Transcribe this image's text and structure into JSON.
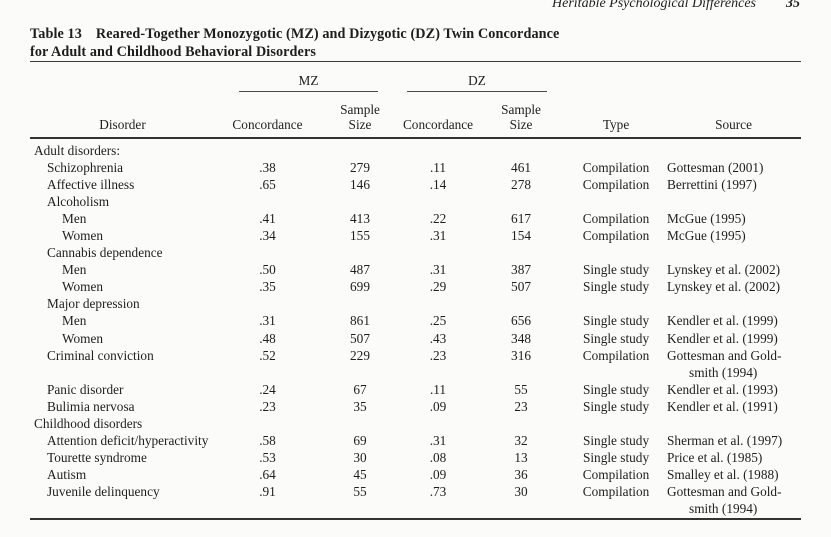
{
  "page": {
    "running_header": "Heritable Psychological Differences",
    "page_number": "35"
  },
  "table": {
    "title": {
      "label": "Table 13",
      "line1": "Reared-Together Monozygotic (MZ) and Dizygotic (DZ) Twin Concordance",
      "line2": "for Adult and Childhood Behavioral Disorders"
    },
    "columns": {
      "disorder": "Disorder",
      "mz_group": "MZ",
      "dz_group": "DZ",
      "concordance": "Concordance",
      "sample_line1": "Sample",
      "sample_line2": "Size",
      "type": "Type",
      "source": "Source"
    },
    "rows": [
      {
        "label": "Adult disorders:",
        "indent": 0
      },
      {
        "label": "Schizophrenia",
        "indent": 1,
        "mz_concordance": ".38",
        "mz_sample": "279",
        "dz_concordance": ".11",
        "dz_sample": "461",
        "type": "Compilation",
        "source": [
          "Gottesman (2001)"
        ]
      },
      {
        "label": "Affective illness",
        "indent": 1,
        "mz_concordance": ".65",
        "mz_sample": "146",
        "dz_concordance": ".14",
        "dz_sample": "278",
        "type": "Compilation",
        "source": [
          "Berrettini (1997)"
        ]
      },
      {
        "label": "Alcoholism",
        "indent": 1
      },
      {
        "label": "Men",
        "indent": 2,
        "mz_concordance": ".41",
        "mz_sample": "413",
        "dz_concordance": ".22",
        "dz_sample": "617",
        "type": "Compilation",
        "source": [
          "McGue (1995)"
        ]
      },
      {
        "label": "Women",
        "indent": 2,
        "mz_concordance": ".34",
        "mz_sample": "155",
        "dz_concordance": ".31",
        "dz_sample": "154",
        "type": "Compilation",
        "source": [
          "McGue (1995)"
        ]
      },
      {
        "label": "Cannabis dependence",
        "indent": 1
      },
      {
        "label": "Men",
        "indent": 2,
        "mz_concordance": ".50",
        "mz_sample": "487",
        "dz_concordance": ".31",
        "dz_sample": "387",
        "type": "Single study",
        "source": [
          "Lynskey et al. (2002)"
        ]
      },
      {
        "label": "Women",
        "indent": 2,
        "mz_concordance": ".35",
        "mz_sample": "699",
        "dz_concordance": ".29",
        "dz_sample": "507",
        "type": "Single study",
        "source": [
          "Lynskey et al. (2002)"
        ]
      },
      {
        "label": "Major depression",
        "indent": 1
      },
      {
        "label": "Men",
        "indent": 2,
        "mz_concordance": ".31",
        "mz_sample": "861",
        "dz_concordance": ".25",
        "dz_sample": "656",
        "type": "Single study",
        "source": [
          "Kendler et al. (1999)"
        ]
      },
      {
        "label": "Women",
        "indent": 2,
        "mz_concordance": ".48",
        "mz_sample": "507",
        "dz_concordance": ".43",
        "dz_sample": "348",
        "type": "Single study",
        "source": [
          "Kendler et al. (1999)"
        ]
      },
      {
        "label": "Criminal conviction",
        "indent": 1,
        "mz_concordance": ".52",
        "mz_sample": "229",
        "dz_concordance": ".23",
        "dz_sample": "316",
        "type": "Compilation",
        "source": [
          "Gottesman and Gold-",
          "smith (1994)"
        ]
      },
      {
        "label": "Panic disorder",
        "indent": 1,
        "mz_concordance": ".24",
        "mz_sample": "67",
        "dz_concordance": ".11",
        "dz_sample": "55",
        "type": "Single study",
        "source": [
          "Kendler et al. (1993)"
        ]
      },
      {
        "label": "Bulimia nervosa",
        "indent": 1,
        "mz_concordance": ".23",
        "mz_sample": "35",
        "dz_concordance": ".09",
        "dz_sample": "23",
        "type": "Single study",
        "source": [
          "Kendler et al. (1991)"
        ]
      },
      {
        "label": "Childhood disorders",
        "indent": 0
      },
      {
        "label": "Attention deficit/hyperactivity",
        "indent": 1,
        "mz_concordance": ".58",
        "mz_sample": "69",
        "dz_concordance": ".31",
        "dz_sample": "32",
        "type": "Single study",
        "source": [
          "Sherman et al. (1997)"
        ]
      },
      {
        "label": "Tourette syndrome",
        "indent": 1,
        "mz_concordance": ".53",
        "mz_sample": "30",
        "dz_concordance": ".08",
        "dz_sample": "13",
        "type": "Single study",
        "source": [
          "Price et al. (1985)"
        ]
      },
      {
        "label": "Autism",
        "indent": 1,
        "mz_concordance": ".64",
        "mz_sample": "45",
        "dz_concordance": ".09",
        "dz_sample": "36",
        "type": "Compilation",
        "source": [
          "Smalley et al. (1988)"
        ]
      },
      {
        "label": "Juvenile delinquency",
        "indent": 1,
        "mz_concordance": ".91",
        "mz_sample": "55",
        "dz_concordance": ".73",
        "dz_sample": "30",
        "type": "Compilation",
        "source": [
          "Gottesman and Gold-",
          "smith (1994)"
        ]
      }
    ]
  },
  "colors": {
    "background": "#fbfbfa",
    "text": "#1e1e1e",
    "rule": "#333333"
  }
}
